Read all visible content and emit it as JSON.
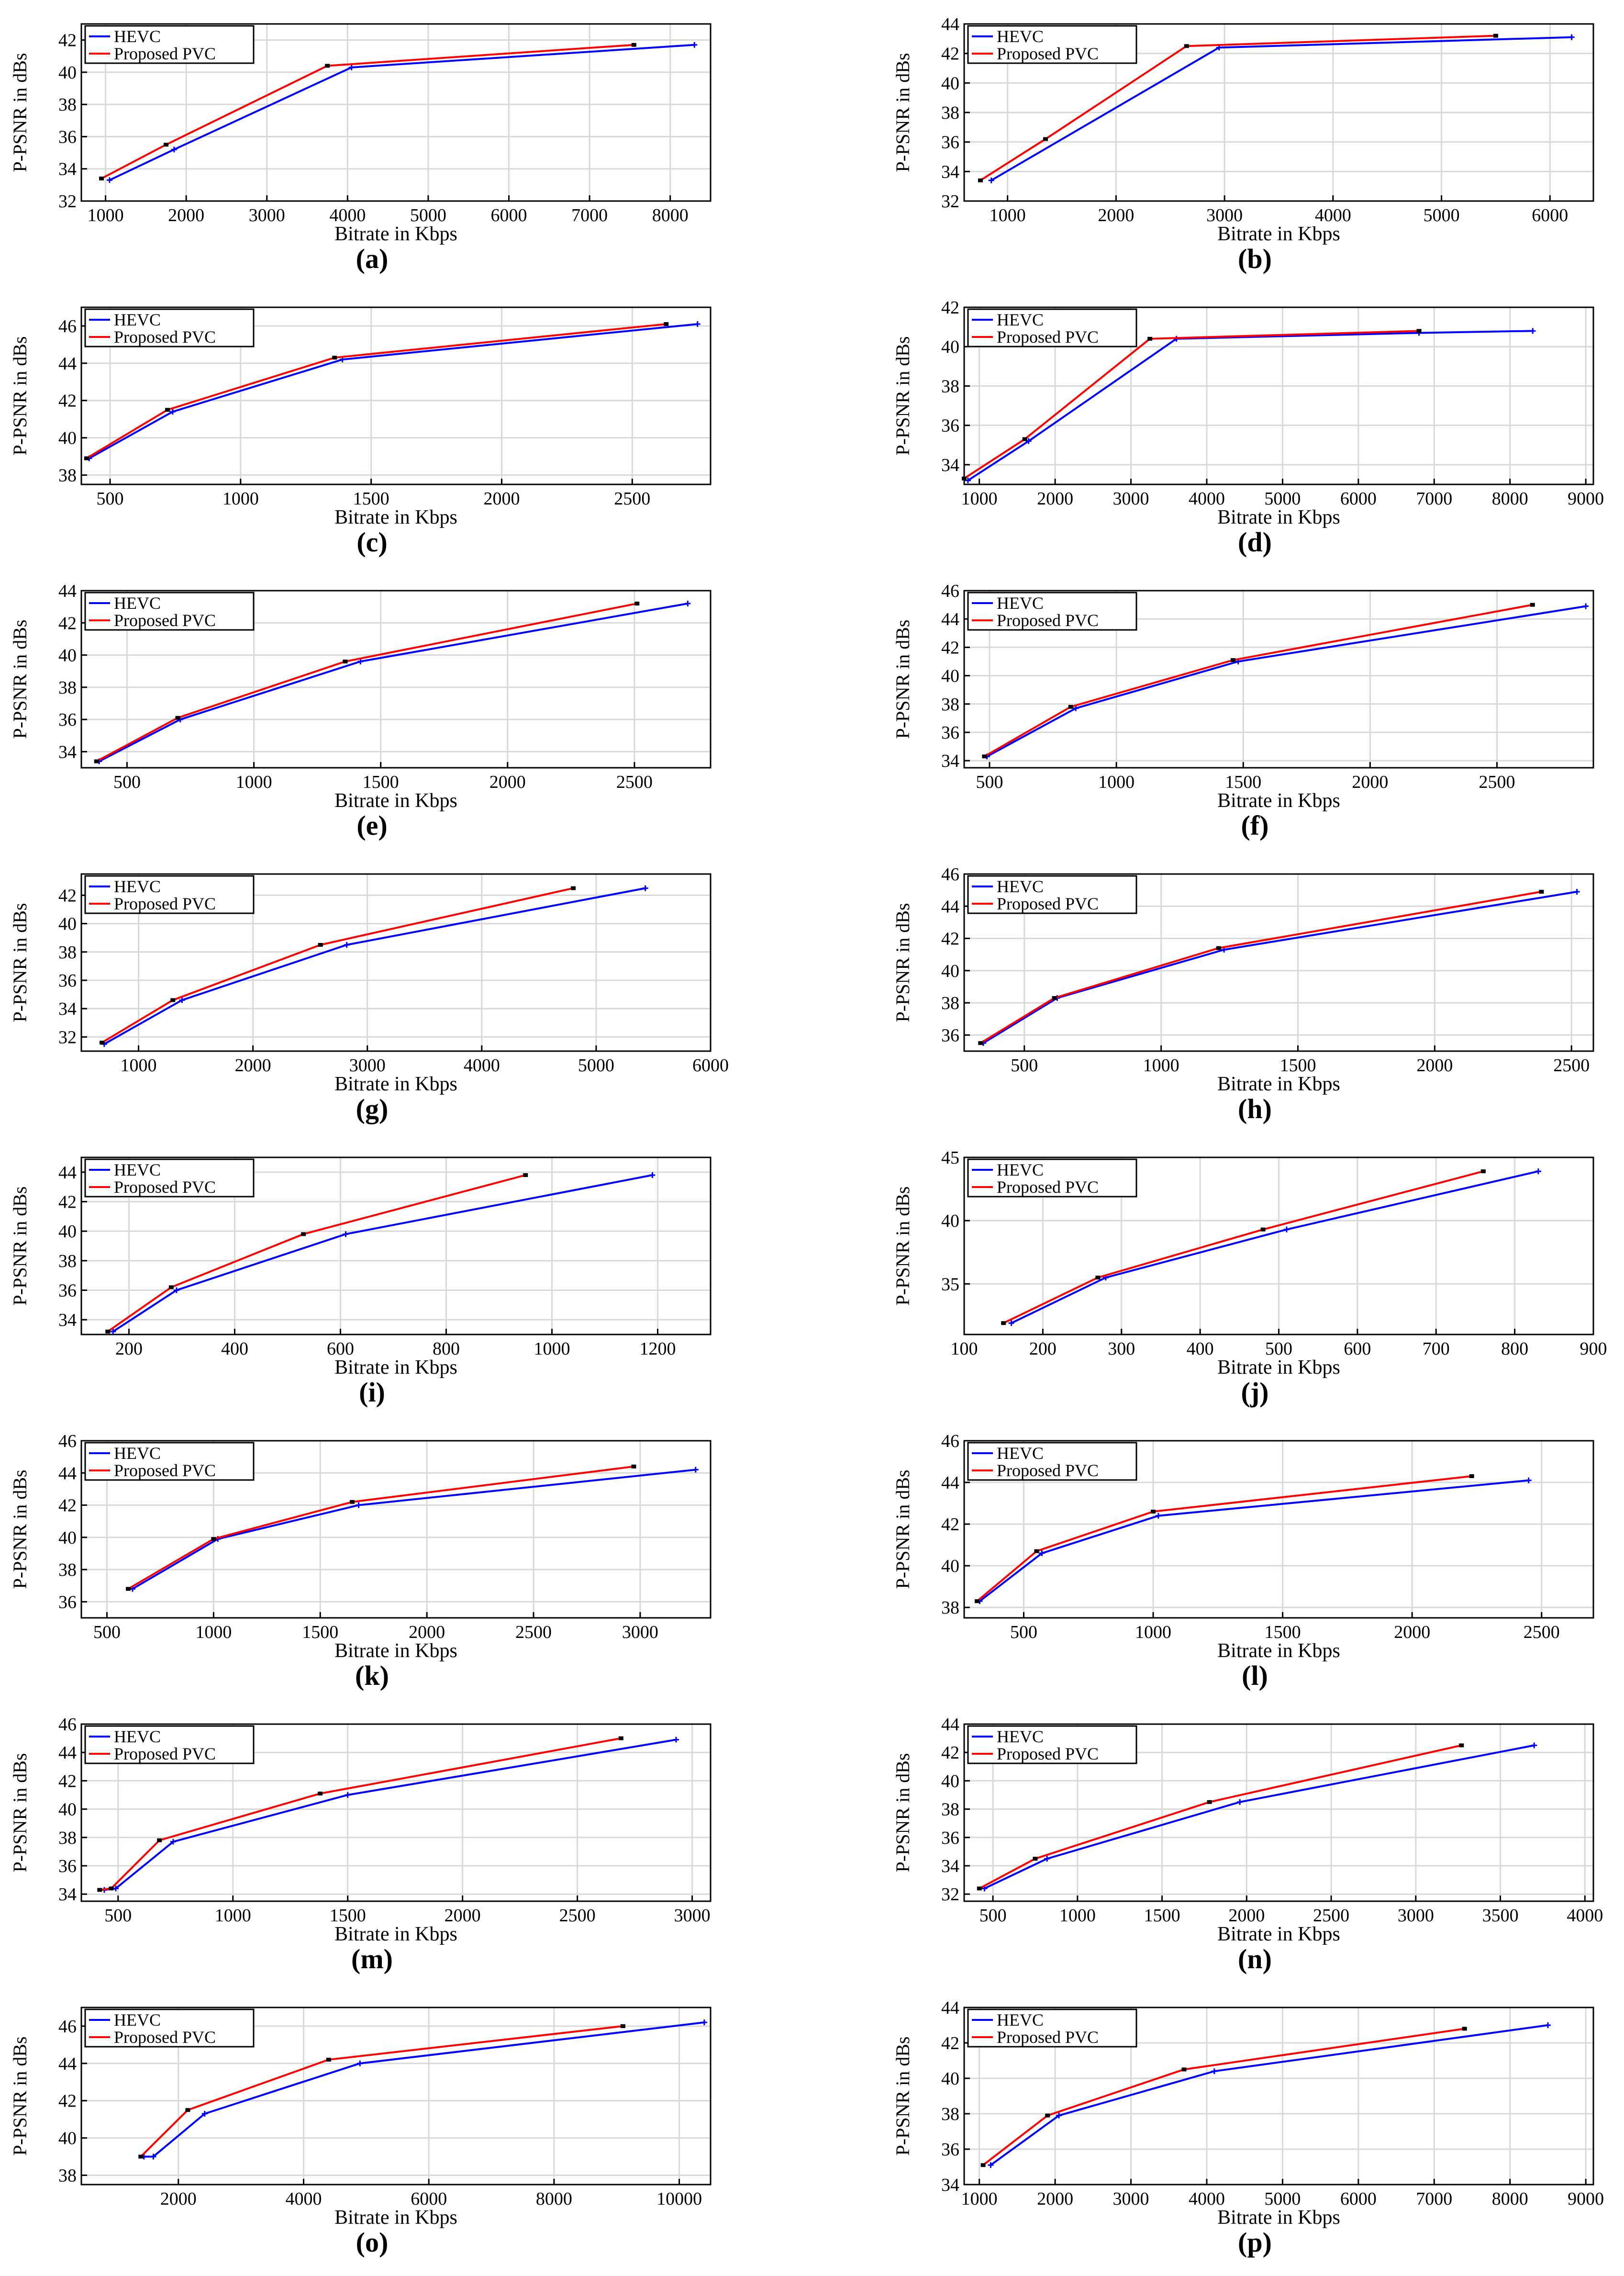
{
  "colors": {
    "hevc": "#0000ff",
    "proposed": "#ff0000",
    "grid": "#d9d9d9",
    "axis": "#000000"
  },
  "chart_data": [
    {
      "panel": "(a)",
      "type": "line",
      "xlabel": "Bitrate in Kbps",
      "ylabel": "P-PSNR in dBs",
      "xlim": [
        700,
        8500
      ],
      "ylim": [
        32,
        43
      ],
      "xticks": [
        1000,
        2000,
        3000,
        4000,
        5000,
        6000,
        7000,
        8000
      ],
      "yticks": [
        32,
        34,
        36,
        38,
        40,
        42
      ],
      "legend": "top-left",
      "series": [
        {
          "name": "HEVC",
          "x": [
            1050,
            1850,
            4050,
            8300
          ],
          "y": [
            33.3,
            35.2,
            40.3,
            41.7
          ]
        },
        {
          "name": "Proposed PVC",
          "x": [
            950,
            1750,
            3750,
            7550
          ],
          "y": [
            33.4,
            35.5,
            40.4,
            41.7
          ]
        }
      ]
    },
    {
      "panel": "(b)",
      "type": "line",
      "xlabel": "Bitrate in Kbps",
      "ylabel": "P-PSNR in dBs",
      "xlim": [
        600,
        6400
      ],
      "ylim": [
        32,
        44
      ],
      "xticks": [
        1000,
        2000,
        3000,
        4000,
        5000,
        6000
      ],
      "yticks": [
        32,
        34,
        36,
        38,
        40,
        42,
        44
      ],
      "legend": "top-left",
      "series": [
        {
          "name": "HEVC",
          "x": [
            850,
            2950,
            6200
          ],
          "y": [
            33.4,
            42.4,
            43.1
          ]
        },
        {
          "name": "Proposed PVC",
          "x": [
            750,
            1350,
            2650,
            5500
          ],
          "y": [
            33.4,
            36.2,
            42.5,
            43.2
          ]
        }
      ]
    },
    {
      "panel": "(c)",
      "type": "line",
      "xlabel": "Bitrate in Kbps",
      "ylabel": "P-PSNR in dBs",
      "xlim": [
        390,
        2800
      ],
      "ylim": [
        37.5,
        47
      ],
      "xticks": [
        500,
        1000,
        1500,
        2000,
        2500
      ],
      "yticks": [
        38,
        40,
        42,
        44,
        46
      ],
      "legend": "top-left",
      "series": [
        {
          "name": "HEVC",
          "x": [
            420,
            740,
            1390,
            2750
          ],
          "y": [
            38.9,
            41.4,
            44.2,
            46.1
          ]
        },
        {
          "name": "Proposed PVC",
          "x": [
            410,
            720,
            1360,
            2630
          ],
          "y": [
            38.9,
            41.5,
            44.3,
            46.1
          ]
        }
      ]
    },
    {
      "panel": "(d)",
      "type": "line",
      "xlabel": "Bitrate in Kbps",
      "ylabel": "P-PSNR in dBs",
      "xlim": [
        800,
        9100
      ],
      "ylim": [
        33,
        42
      ],
      "xticks": [
        1000,
        2000,
        3000,
        4000,
        5000,
        6000,
        7000,
        8000,
        9000
      ],
      "yticks": [
        34,
        36,
        38,
        40,
        42
      ],
      "legend": "top-left",
      "series": [
        {
          "name": "HEVC",
          "x": [
            850,
            1650,
            3600,
            6800,
            8300
          ],
          "y": [
            33.2,
            35.2,
            40.4,
            40.7,
            40.8
          ]
        },
        {
          "name": "Proposed PVC",
          "x": [
            800,
            1600,
            3250,
            6800
          ],
          "y": [
            33.3,
            35.3,
            40.4,
            40.8
          ]
        }
      ]
    },
    {
      "panel": "(e)",
      "type": "line",
      "xlabel": "Bitrate in Kbps",
      "ylabel": "P-PSNR in dBs",
      "xlim": [
        320,
        2800
      ],
      "ylim": [
        33,
        44
      ],
      "xticks": [
        500,
        1000,
        1500,
        2000,
        2500
      ],
      "yticks": [
        34,
        36,
        38,
        40,
        42,
        44
      ],
      "legend": "top-left",
      "series": [
        {
          "name": "HEVC",
          "x": [
            390,
            710,
            1420,
            2710
          ],
          "y": [
            33.4,
            36.0,
            39.6,
            43.2
          ]
        },
        {
          "name": "Proposed PVC",
          "x": [
            380,
            700,
            1360,
            2510
          ],
          "y": [
            33.4,
            36.1,
            39.6,
            43.2
          ]
        }
      ]
    },
    {
      "panel": "(f)",
      "type": "line",
      "xlabel": "Bitrate in Kbps",
      "ylabel": "P-PSNR in dBs",
      "xlim": [
        400,
        2880
      ],
      "ylim": [
        33.5,
        46
      ],
      "xticks": [
        500,
        1000,
        1500,
        2000,
        2500
      ],
      "yticks": [
        34,
        36,
        38,
        40,
        42,
        44,
        46
      ],
      "legend": "top-left",
      "series": [
        {
          "name": "HEVC",
          "x": [
            490,
            840,
            1480,
            2850
          ],
          "y": [
            34.3,
            37.7,
            41.0,
            44.9
          ]
        },
        {
          "name": "Proposed PVC",
          "x": [
            480,
            820,
            1460,
            2640
          ],
          "y": [
            34.3,
            37.8,
            41.1,
            45.0
          ]
        }
      ]
    },
    {
      "panel": "(g)",
      "type": "line",
      "xlabel": "Bitrate in Kbps",
      "ylabel": "P-PSNR in dBs",
      "xlim": [
        500,
        6000
      ],
      "ylim": [
        31,
        43.5
      ],
      "xticks": [
        1000,
        2000,
        3000,
        4000,
        5000,
        6000
      ],
      "yticks": [
        32,
        34,
        36,
        38,
        40,
        42
      ],
      "legend": "top-left",
      "series": [
        {
          "name": "HEVC",
          "x": [
            700,
            1380,
            2820,
            5430
          ],
          "y": [
            31.5,
            34.6,
            38.5,
            42.5
          ]
        },
        {
          "name": "Proposed PVC",
          "x": [
            680,
            1300,
            2590,
            4800
          ],
          "y": [
            31.6,
            34.6,
            38.5,
            42.5
          ]
        }
      ]
    },
    {
      "panel": "(h)",
      "type": "line",
      "xlabel": "Bitrate in Kbps",
      "ylabel": "P-PSNR in dBs",
      "xlim": [
        280,
        2580
      ],
      "ylim": [
        35,
        46
      ],
      "xticks": [
        500,
        1000,
        1500,
        2000,
        2500
      ],
      "yticks": [
        36,
        38,
        40,
        42,
        44,
        46
      ],
      "legend": "top-left",
      "series": [
        {
          "name": "HEVC",
          "x": [
            350,
            620,
            1230,
            2520
          ],
          "y": [
            35.5,
            38.3,
            41.3,
            44.9
          ]
        },
        {
          "name": "Proposed PVC",
          "x": [
            340,
            610,
            1210,
            2390
          ],
          "y": [
            35.5,
            38.3,
            41.4,
            44.9
          ]
        }
      ]
    },
    {
      "panel": "(i)",
      "type": "line",
      "xlabel": "Bitrate in Kbps",
      "ylabel": "P-PSNR in dBs",
      "xlim": [
        110,
        1300
      ],
      "ylim": [
        33,
        45
      ],
      "xticks": [
        200,
        400,
        600,
        800,
        1000,
        1200
      ],
      "yticks": [
        34,
        36,
        38,
        40,
        42,
        44
      ],
      "legend": "top-left",
      "series": [
        {
          "name": "HEVC",
          "x": [
            170,
            290,
            610,
            1190
          ],
          "y": [
            33.2,
            36.0,
            39.8,
            43.8
          ]
        },
        {
          "name": "Proposed PVC",
          "x": [
            160,
            280,
            530,
            950
          ],
          "y": [
            33.2,
            36.2,
            39.8,
            43.8
          ]
        }
      ]
    },
    {
      "panel": "(j)",
      "type": "line",
      "xlabel": "Bitrate in Kbps",
      "ylabel": "P-PSNR in dBs",
      "xlim": [
        100,
        900
      ],
      "ylim": [
        31,
        45
      ],
      "xticks": [
        100,
        200,
        300,
        400,
        500,
        600,
        700,
        800,
        900
      ],
      "yticks": [
        35,
        40,
        45
      ],
      "legend": "top-left",
      "series": [
        {
          "name": "HEVC",
          "x": [
            160,
            280,
            510,
            830
          ],
          "y": [
            31.9,
            35.5,
            39.3,
            43.9
          ]
        },
        {
          "name": "Proposed PVC",
          "x": [
            150,
            270,
            480,
            760
          ],
          "y": [
            31.9,
            35.5,
            39.3,
            43.9
          ]
        }
      ]
    },
    {
      "panel": "(k)",
      "type": "line",
      "xlabel": "Bitrate in Kbps",
      "ylabel": "P-PSNR in dBs",
      "xlim": [
        380,
        3330
      ],
      "ylim": [
        35,
        46
      ],
      "xticks": [
        500,
        1000,
        1500,
        2000,
        2500,
        3000
      ],
      "yticks": [
        36,
        38,
        40,
        42,
        44,
        46
      ],
      "legend": "top-left",
      "series": [
        {
          "name": "HEVC",
          "x": [
            620,
            1020,
            1680,
            3260
          ],
          "y": [
            36.8,
            39.9,
            42.0,
            44.2
          ]
        },
        {
          "name": "Proposed PVC",
          "x": [
            600,
            1000,
            1650,
            2970
          ],
          "y": [
            36.8,
            39.9,
            42.2,
            44.4
          ]
        }
      ]
    },
    {
      "panel": "(l)",
      "type": "line",
      "xlabel": "Bitrate in Kbps",
      "ylabel": "P-PSNR in dBs",
      "xlim": [
        270,
        2700
      ],
      "ylim": [
        37.5,
        46
      ],
      "xticks": [
        500,
        1000,
        1500,
        2000,
        2500
      ],
      "yticks": [
        38,
        40,
        42,
        44,
        46
      ],
      "legend": "top-left",
      "series": [
        {
          "name": "HEVC",
          "x": [
            330,
            570,
            1020,
            2450
          ],
          "y": [
            38.3,
            40.6,
            42.4,
            44.1
          ]
        },
        {
          "name": "Proposed PVC",
          "x": [
            320,
            550,
            1000,
            2230
          ],
          "y": [
            38.3,
            40.7,
            42.6,
            44.3
          ]
        }
      ]
    },
    {
      "panel": "(m)",
      "type": "line",
      "xlabel": "Bitrate in Kbps",
      "ylabel": "P-PSNR in dBs",
      "xlim": [
        340,
        3080
      ],
      "ylim": [
        33.5,
        46
      ],
      "xticks": [
        500,
        1000,
        1500,
        2000,
        2500,
        3000
      ],
      "yticks": [
        34,
        36,
        38,
        40,
        42,
        44,
        46
      ],
      "legend": "top-left",
      "series": [
        {
          "name": "HEVC",
          "x": [
            440,
            490,
            740,
            1500,
            2930
          ],
          "y": [
            34.3,
            34.4,
            37.7,
            41.0,
            44.9
          ]
        },
        {
          "name": "Proposed PVC",
          "x": [
            420,
            470,
            680,
            1380,
            2690
          ],
          "y": [
            34.3,
            34.4,
            37.8,
            41.1,
            45.0
          ]
        }
      ]
    },
    {
      "panel": "(n)",
      "type": "line",
      "xlabel": "Bitrate in Kbps",
      "ylabel": "P-PSNR in dBs",
      "xlim": [
        330,
        4050
      ],
      "ylim": [
        31.5,
        44
      ],
      "xticks": [
        500,
        1000,
        1500,
        2000,
        2500,
        3000,
        3500,
        4000
      ],
      "yticks": [
        32,
        34,
        36,
        38,
        40,
        42,
        44
      ],
      "legend": "top-left",
      "series": [
        {
          "name": "HEVC",
          "x": [
            450,
            820,
            1960,
            3700
          ],
          "y": [
            32.4,
            34.5,
            38.5,
            42.5
          ]
        },
        {
          "name": "Proposed PVC",
          "x": [
            420,
            750,
            1780,
            3270
          ],
          "y": [
            32.4,
            34.5,
            38.5,
            42.5
          ]
        }
      ]
    },
    {
      "panel": "(o)",
      "type": "line",
      "xlabel": "Bitrate in Kbps",
      "ylabel": "P-PSNR in dBs",
      "xlim": [
        450,
        10500
      ],
      "ylim": [
        37.5,
        47
      ],
      "xticks": [
        2000,
        4000,
        6000,
        8000,
        10000
      ],
      "yticks": [
        38,
        40,
        42,
        44,
        46
      ],
      "legend": "top-left",
      "series": [
        {
          "name": "HEVC",
          "x": [
            1450,
            1600,
            2420,
            4900,
            10400
          ],
          "y": [
            39.0,
            39.0,
            41.3,
            44.0,
            46.2
          ]
        },
        {
          "name": "Proposed PVC",
          "x": [
            1400,
            2150,
            4400,
            9100
          ],
          "y": [
            39.0,
            41.5,
            44.2,
            46.0
          ]
        }
      ]
    },
    {
      "panel": "(p)",
      "type": "line",
      "xlabel": "Bitrate in Kbps",
      "ylabel": "P-PSNR in dBs",
      "xlim": [
        800,
        9100
      ],
      "ylim": [
        34,
        44
      ],
      "xticks": [
        1000,
        2000,
        3000,
        4000,
        5000,
        6000,
        7000,
        8000,
        9000
      ],
      "yticks": [
        34,
        36,
        38,
        40,
        42,
        44
      ],
      "legend": "top-left",
      "series": [
        {
          "name": "HEVC",
          "x": [
            1150,
            2050,
            4100,
            8500
          ],
          "y": [
            35.1,
            37.9,
            40.4,
            43.0
          ]
        },
        {
          "name": "Proposed PVC",
          "x": [
            1050,
            1900,
            3700,
            7400
          ],
          "y": [
            35.1,
            37.9,
            40.5,
            42.8
          ]
        }
      ]
    }
  ]
}
